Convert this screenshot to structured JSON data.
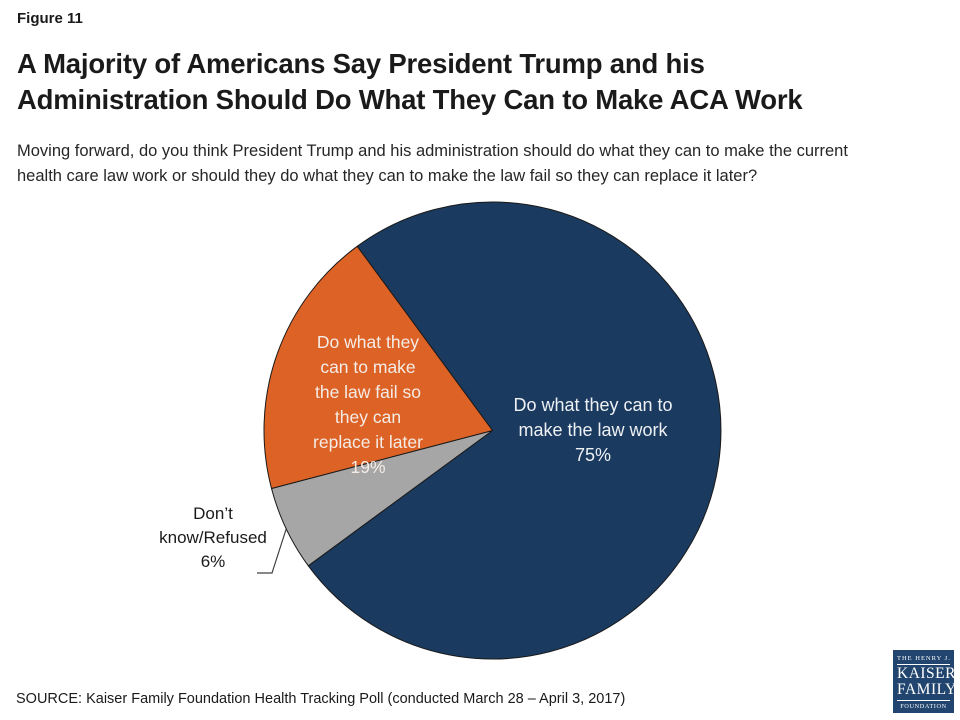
{
  "figure_label": "Figure 11",
  "title": "A Majority of Americans Say President Trump and his\nAdministration Should Do What They Can to Make ACA Work",
  "subtitle": "Moving forward, do you think President Trump and his administration should do what they can to make the current\nhealth care law work or should they do what they can to make the law fail so they can replace it later?",
  "chart_data": {
    "type": "pie",
    "unit": "%",
    "start_angle_deg": -36.3,
    "outline_color": "#1a1a1a",
    "legend": "none",
    "labels_on_slices": true,
    "slices": [
      {
        "id": "law-work",
        "label": "Do what they can to make the law work",
        "value": 75,
        "color": "#1b3a5f",
        "label_lines": "Do what they can to\nmake the law work\n75%",
        "label_color": "#eef1f4"
      },
      {
        "id": "dont-know",
        "label": "Don’t know/Refused",
        "value": 6,
        "color": "#a6a6a6",
        "label_lines": "Don’t\nknow/Refused\n6%",
        "label_color": "#1a1a1a"
      },
      {
        "id": "law-fail",
        "label": "Do what they can to make the law fail so they can replace it later",
        "value": 19,
        "color": "#dd6226",
        "label_lines": "Do what they\ncan to make\nthe law fail so\nthey can\nreplace it later\n19%",
        "label_color": "#f4ece6"
      }
    ]
  },
  "source": "SOURCE: Kaiser Family Foundation Health Tracking Poll (conducted March 28 – April 3, 2017)",
  "logo": {
    "line1": "THE HENRY J.",
    "line2": "KAISER",
    "line3": "FAMILY",
    "line4": "FOUNDATION",
    "bg_color": "#21456f"
  }
}
